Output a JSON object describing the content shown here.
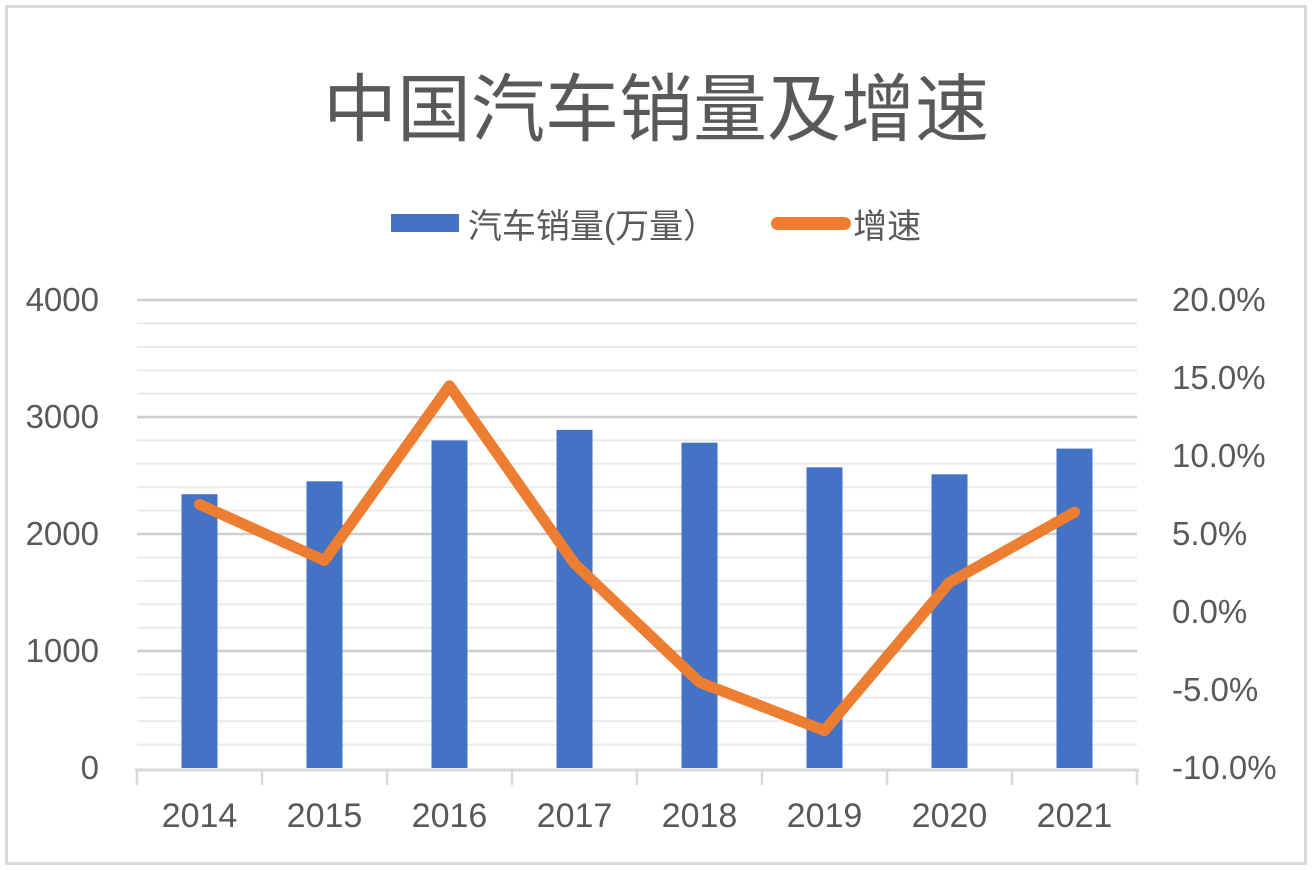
{
  "chart_data": {
    "type": "bar+line",
    "title": "中国汽车销量及增速",
    "categories": [
      "2014",
      "2015",
      "2016",
      "2017",
      "2018",
      "2019",
      "2020",
      "2021"
    ],
    "series": [
      {
        "name": "汽车销量(万量）",
        "type": "bar",
        "y_axis": "left",
        "color": "#4472C4",
        "values": [
          2340,
          2450,
          2800,
          2890,
          2780,
          2570,
          2510,
          2730
        ]
      },
      {
        "name": "增速",
        "type": "line",
        "y_axis": "right",
        "color": "#ED7D31",
        "values": [
          6.9,
          3.3,
          14.5,
          3.1,
          -4.5,
          -7.6,
          1.9,
          6.4
        ]
      }
    ],
    "axes": {
      "left": {
        "min": 0,
        "max": 4000,
        "tick_values": [
          0,
          1000,
          2000,
          3000,
          4000
        ],
        "tick_labels": [
          "0",
          "1000",
          "2000",
          "3000",
          "4000"
        ]
      },
      "right": {
        "min": -10,
        "max": 20,
        "tick_values": [
          -10,
          -5,
          0,
          5,
          10,
          15,
          20
        ],
        "tick_labels": [
          "-10.0%",
          "-5.0%",
          "0.0%",
          "5.0%",
          "10.0%",
          "15.0%",
          "20.0%"
        ]
      }
    },
    "grid": {
      "show": true,
      "minor_step": 200,
      "major_step": 1000,
      "minor_color": "#eaeaea",
      "major_color": "#cdcdcd"
    },
    "legend": {
      "position": "top",
      "items": [
        "汽车销量(万量）",
        "增速"
      ]
    },
    "style": {
      "axis_line_color": "#d9d9d9",
      "text_color": "#595959",
      "background": "#ffffff",
      "border_color": "#d9d9d9"
    }
  }
}
